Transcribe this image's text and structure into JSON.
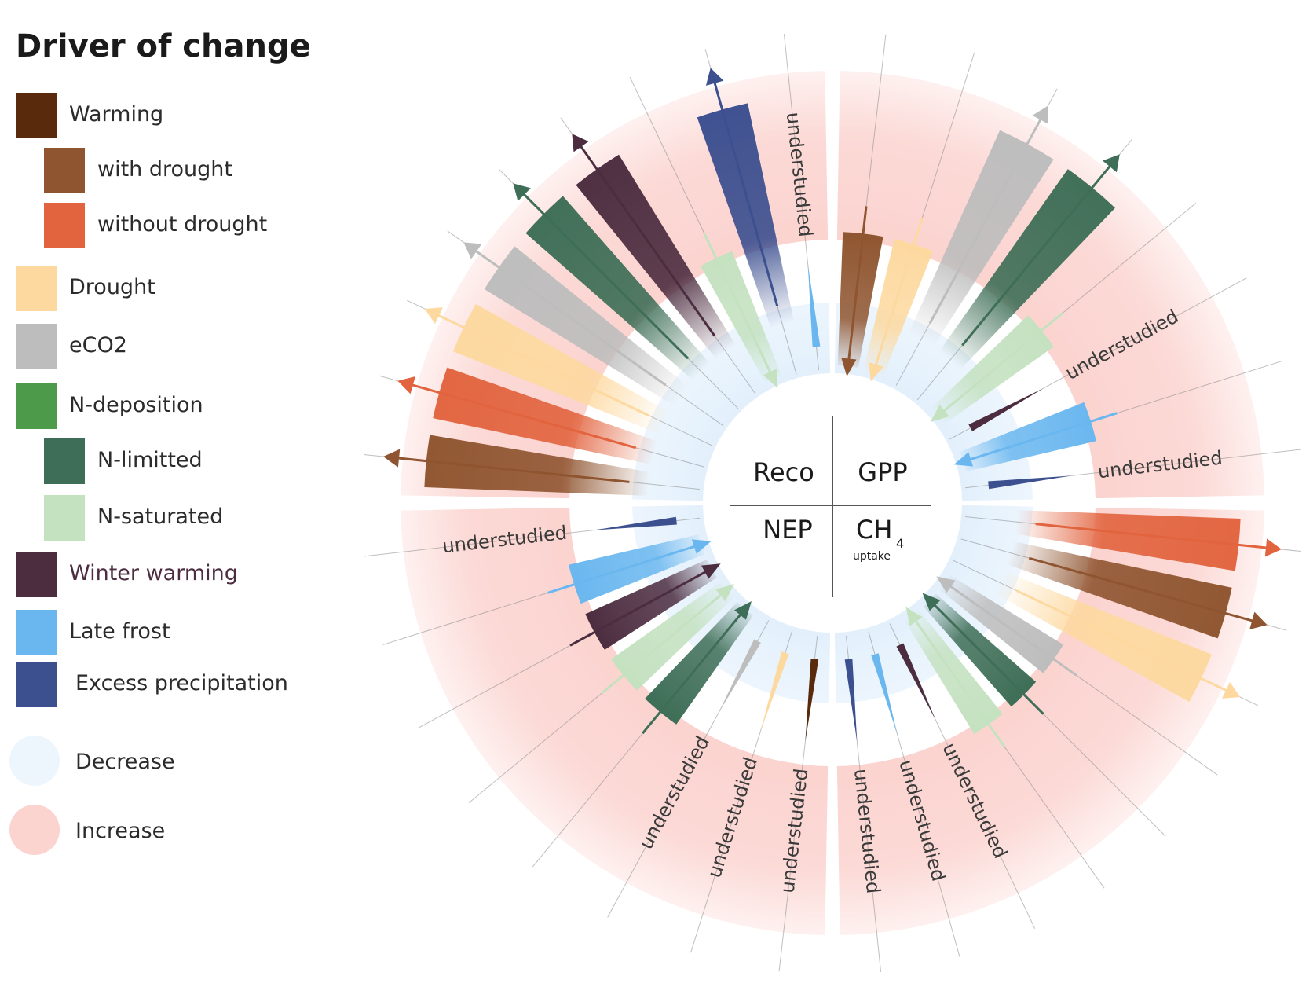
{
  "legend": {
    "title": "Driver of change",
    "items": [
      {
        "key": "warming",
        "label": "Warming",
        "color": "#5a2a0c",
        "indent": false
      },
      {
        "key": "with-drought",
        "label": "with drought",
        "color": "#8f5530",
        "indent": true
      },
      {
        "key": "without-drought",
        "label": "without drought",
        "color": "#e2643f",
        "indent": true
      },
      {
        "key": "drought",
        "label": "Drought",
        "color": "#fdd9a0",
        "indent": false
      },
      {
        "key": "eco2",
        "label": "eCO2",
        "color": "#bdbdbd",
        "indent": false
      },
      {
        "key": "n-deposition",
        "label": "N-deposition",
        "color": "#4e9a4b",
        "indent": false
      },
      {
        "key": "n-limited",
        "label": "N-limitted",
        "color": "#3e6e57",
        "indent": true
      },
      {
        "key": "n-saturated",
        "label": "N-saturated",
        "color": "#c4e1c0",
        "indent": true
      },
      {
        "key": "winter-warming",
        "label": "Winter warming",
        "color": "#4c2d40",
        "indent": false
      },
      {
        "key": "late-frost",
        "label": "Late frost",
        "color": "#6ab7ef",
        "indent": false
      },
      {
        "key": "excess-precipitation",
        "label": "Excess precipitation",
        "color": "#3c4f8f",
        "indent": false
      },
      {
        "key": "decrease",
        "label": "Decrease",
        "color": "#eef6fd",
        "indent": false,
        "round": true
      },
      {
        "key": "increase",
        "label": "Increase",
        "color": "#fbd3cf",
        "indent": false,
        "round": true
      }
    ]
  },
  "center": {
    "reco": "Reco",
    "gpp": "GPP",
    "nep": "NEP",
    "ch4_main": "CH",
    "ch4_sub": "4",
    "ch4_note": "uptake"
  },
  "understudied_label": "understudied",
  "flux_sections": [
    {
      "flux": "GPP",
      "drivers": [
        {
          "driver": "warming-with-drought",
          "direction": "decrease"
        },
        {
          "driver": "drought",
          "direction": "decrease"
        },
        {
          "driver": "eco2",
          "direction": "increase"
        },
        {
          "driver": "n-limited",
          "direction": "increase"
        },
        {
          "driver": "n-saturated",
          "direction": "decrease"
        },
        {
          "driver": "winter-warming",
          "direction": "understudied"
        },
        {
          "driver": "late-frost",
          "direction": "decrease"
        },
        {
          "driver": "excess-precipitation",
          "direction": "understudied"
        }
      ]
    },
    {
      "flux": "CH4 uptake",
      "drivers": [
        {
          "driver": "warming-without-drought",
          "direction": "increase"
        },
        {
          "driver": "warming-with-drought",
          "direction": "increase"
        },
        {
          "driver": "drought",
          "direction": "increase"
        },
        {
          "driver": "eco2",
          "direction": "decrease"
        },
        {
          "driver": "n-limited",
          "direction": "decrease"
        },
        {
          "driver": "n-saturated",
          "direction": "decrease"
        },
        {
          "driver": "winter-warming",
          "direction": "understudied"
        },
        {
          "driver": "late-frost",
          "direction": "understudied"
        },
        {
          "driver": "excess-precipitation",
          "direction": "understudied"
        }
      ]
    },
    {
      "flux": "NEP",
      "drivers": [
        {
          "driver": "warming",
          "direction": "understudied"
        },
        {
          "driver": "drought",
          "direction": "understudied"
        },
        {
          "driver": "eco2",
          "direction": "understudied"
        },
        {
          "driver": "n-limited",
          "direction": "decrease"
        },
        {
          "driver": "n-saturated",
          "direction": "decrease"
        },
        {
          "driver": "winter-warming",
          "direction": "decrease"
        },
        {
          "driver": "late-frost",
          "direction": "decrease"
        },
        {
          "driver": "excess-precipitation",
          "direction": "understudied"
        }
      ]
    },
    {
      "flux": "Reco",
      "drivers": [
        {
          "driver": "warming-with-drought",
          "direction": "increase"
        },
        {
          "driver": "warming-without-drought",
          "direction": "increase"
        },
        {
          "driver": "drought",
          "direction": "increase"
        },
        {
          "driver": "eco2",
          "direction": "increase"
        },
        {
          "driver": "n-limited",
          "direction": "increase"
        },
        {
          "driver": "winter-warming",
          "direction": "increase"
        },
        {
          "driver": "n-saturated",
          "direction": "decrease"
        },
        {
          "driver": "excess-precipitation",
          "direction": "increase"
        },
        {
          "driver": "late-frost",
          "direction": "understudied"
        }
      ]
    }
  ]
}
